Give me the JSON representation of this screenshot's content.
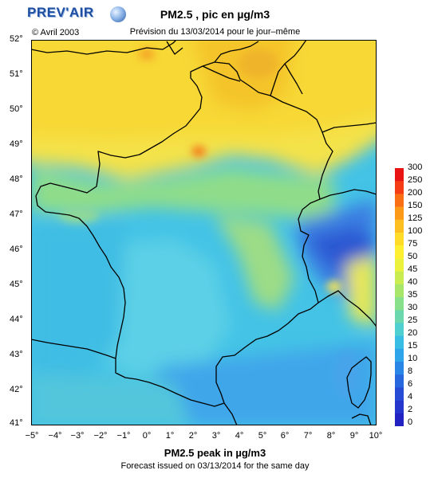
{
  "header": {
    "logo_text": "PREV'AIR",
    "copyright": "© Avril 2003",
    "title": "PM2.5 , pic en µg/m3",
    "subtitle": "Prévision du 13/03/2014 pour le jour–même"
  },
  "footer": {
    "title": "PM2.5 peak in µg/m3",
    "subtitle": "Forecast issued on 03/13/2014 for the same day"
  },
  "map": {
    "lat_labels": [
      "52°",
      "51°",
      "50°",
      "49°",
      "48°",
      "47°",
      "46°",
      "45°",
      "44°",
      "43°",
      "42°",
      "41°"
    ],
    "lon_labels": [
      "−5°",
      "−4°",
      "−3°",
      "−2°",
      "−1°",
      "0°",
      "1°",
      "2°",
      "3°",
      "4°",
      "5°",
      "6°",
      "7°",
      "8°",
      "9°",
      "10°"
    ],
    "lat_range": [
      41,
      52
    ],
    "lon_range": [
      -5,
      10
    ]
  },
  "colorbar": {
    "labels": [
      "300",
      "250",
      "200",
      "150",
      "125",
      "100",
      "75",
      "50",
      "45",
      "40",
      "35",
      "30",
      "25",
      "20",
      "15",
      "10",
      "8",
      "6",
      "4",
      "2",
      "0"
    ],
    "colors": [
      "#e81414",
      "#f53c14",
      "#fa6e14",
      "#fc9a18",
      "#fdbf20",
      "#fedc28",
      "#fef030",
      "#ecf23c",
      "#c9ec50",
      "#a8e66a",
      "#88e08a",
      "#6ad8ac",
      "#4fcfd0",
      "#38bde4",
      "#2ea4ea",
      "#2a86e6",
      "#2868de",
      "#264cd6",
      "#2436cc",
      "#2222c2"
    ]
  }
}
